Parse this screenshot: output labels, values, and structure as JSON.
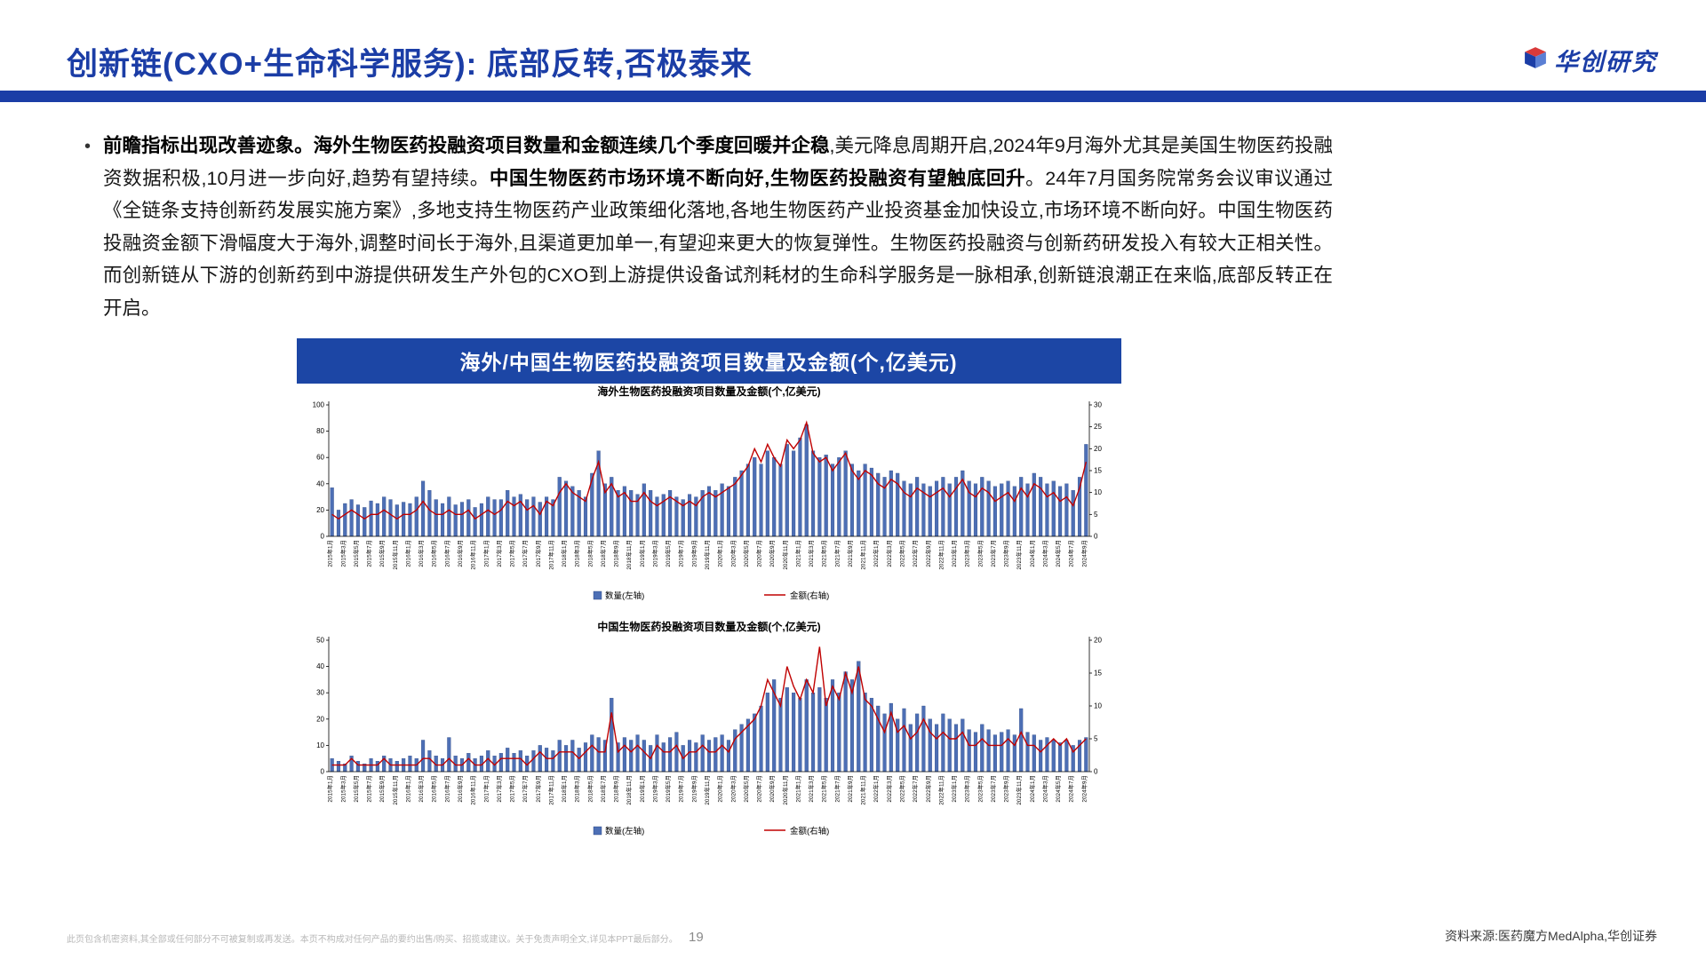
{
  "colors": {
    "primary_blue": "#1b3da6",
    "panel_header_blue": "#1c46a5",
    "bar_blue": "#4d6fb5",
    "line_red": "#c00000"
  },
  "header": {
    "title": "创新链(CXO+生命科学服务): 底部反转,否极泰来",
    "logo_text": "华创研究"
  },
  "bullet": {
    "marker": "•",
    "segments": [
      {
        "text": "前瞻指标出现改善迹象。海外生物医药投融资项目数量和金额连续几个季度回暖并企稳",
        "bold": true
      },
      {
        "text": ",美元降息周期开启,2024年9月海外尤其是美国生物医药投融资数据积极,10月进一步向好,趋势有望持续。",
        "bold": false
      },
      {
        "text": "中国生物医药市场环境不断向好,生物医药投融资有望触底回升",
        "bold": true
      },
      {
        "text": "。24年7月国务院常务会议审议通过《全链条支持创新药发展实施方案》,多地支持生物医药产业政策细化落地,各地生物医药产业投资基金加快设立,市场环境不断向好。中国生物医药投融资金额下滑幅度大于海外,调整时间长于海外,且渠道更加单一,有望迎来更大的恢复弹性。生物医药投融资与创新药研发投入有较大正相关性。而创新链从下游的创新药到中游提供研发生产外包的CXO到上游提供设备试剂耗材的生命科学服务是一脉相承,创新链浪潮正在来临,底部反转正在开启。",
        "bold": false
      }
    ]
  },
  "panel": {
    "title": "海外/中国生物医药投融资项目数量及金额(个,亿美元)"
  },
  "chart_data": [
    {
      "type": "bar+line",
      "title": "海外生物医药投融资项目数量及金额(个,亿美元)",
      "grid": false,
      "legend_position": "bottom",
      "left_axis": {
        "min": 0,
        "max": 100,
        "step": 20
      },
      "right_axis": {
        "min": 0,
        "max": 30,
        "step": 5
      },
      "x_tick_labels": [
        "2015年1月",
        "2015年3月",
        "2015年5月",
        "2015年7月",
        "2015年9月",
        "2015年11月",
        "2016年1月",
        "2016年3月",
        "2016年5月",
        "2016年7月",
        "2016年9月",
        "2016年11月",
        "2017年1月",
        "2017年3月",
        "2017年5月",
        "2017年7月",
        "2017年9月",
        "2017年11月",
        "2018年1月",
        "2018年3月",
        "2018年5月",
        "2018年7月",
        "2018年9月",
        "2018年11月",
        "2019年1月",
        "2019年3月",
        "2019年5月",
        "2019年7月",
        "2019年9月",
        "2019年11月",
        "2020年1月",
        "2020年3月",
        "2020年5月",
        "2020年7月",
        "2020年9月",
        "2020年11月",
        "2021年1月",
        "2021年3月",
        "2021年5月",
        "2021年7月",
        "2021年9月",
        "2021年11月",
        "2022年1月",
        "2022年3月",
        "2022年5月",
        "2022年7月",
        "2022年9月",
        "2022年11月",
        "2023年1月",
        "2023年3月",
        "2023年5月",
        "2023年7月",
        "2023年9月",
        "2023年11月",
        "2024年1月",
        "2024年3月",
        "2024年5月",
        "2024年7月",
        "2024年9月"
      ],
      "series": [
        {
          "name": "数量(左轴)",
          "kind": "bar",
          "axis": "left",
          "color": "#4d6fb5",
          "values": [
            37,
            20,
            25,
            28,
            24,
            22,
            27,
            25,
            30,
            28,
            24,
            26,
            25,
            30,
            42,
            35,
            28,
            25,
            30,
            24,
            26,
            28,
            22,
            25,
            30,
            28,
            28,
            35,
            30,
            32,
            28,
            30,
            26,
            30,
            28,
            45,
            42,
            38,
            35,
            30,
            48,
            65,
            40,
            45,
            35,
            38,
            35,
            32,
            40,
            35,
            30,
            32,
            35,
            30,
            28,
            32,
            30,
            35,
            38,
            35,
            40,
            38,
            45,
            50,
            55,
            60,
            55,
            65,
            60,
            55,
            70,
            65,
            75,
            85,
            65,
            60,
            62,
            55,
            60,
            65,
            55,
            50,
            55,
            52,
            48,
            45,
            50,
            48,
            42,
            40,
            45,
            40,
            38,
            42,
            45,
            40,
            45,
            50,
            42,
            40,
            45,
            42,
            38,
            40,
            42,
            38,
            45,
            40,
            48,
            45,
            40,
            42,
            38,
            40,
            35,
            45,
            70
          ]
        },
        {
          "name": "金额(右轴)",
          "kind": "line",
          "axis": "right",
          "color": "#c00000",
          "values": [
            5,
            4,
            5,
            6,
            5,
            4,
            5,
            5,
            6,
            5,
            4,
            5,
            5,
            6,
            8,
            6,
            5,
            5,
            6,
            5,
            5,
            6,
            4,
            5,
            6,
            5,
            6,
            8,
            7,
            8,
            6,
            7,
            5,
            8,
            7,
            10,
            12,
            10,
            9,
            8,
            13,
            17,
            10,
            12,
            9,
            10,
            8,
            8,
            10,
            8,
            7,
            8,
            9,
            8,
            7,
            8,
            7,
            9,
            10,
            9,
            10,
            11,
            12,
            14,
            16,
            20,
            17,
            21,
            18,
            16,
            22,
            20,
            22,
            26,
            19,
            17,
            18,
            15,
            17,
            19,
            15,
            13,
            15,
            14,
            12,
            11,
            13,
            12,
            10,
            9,
            11,
            10,
            9,
            10,
            11,
            9,
            11,
            13,
            10,
            9,
            11,
            10,
            8,
            9,
            10,
            8,
            11,
            9,
            12,
            11,
            9,
            10,
            8,
            9,
            7,
            11,
            17
          ]
        }
      ]
    },
    {
      "type": "bar+line",
      "title": "中国生物医药投融资项目数量及金额(个,亿美元)",
      "grid": false,
      "legend_position": "bottom",
      "left_axis": {
        "min": 0,
        "max": 50,
        "step": 10
      },
      "right_axis": {
        "min": 0,
        "max": 20,
        "step": 5
      },
      "x_tick_labels": [
        "2015年1月",
        "2015年3月",
        "2015年5月",
        "2015年7月",
        "2015年9月",
        "2015年11月",
        "2016年1月",
        "2016年3月",
        "2016年5月",
        "2016年7月",
        "2016年9月",
        "2016年11月",
        "2017年1月",
        "2017年3月",
        "2017年5月",
        "2017年7月",
        "2017年9月",
        "2017年11月",
        "2018年1月",
        "2018年3月",
        "2018年5月",
        "2018年7月",
        "2018年9月",
        "2018年11月",
        "2019年1月",
        "2019年3月",
        "2019年5月",
        "2019年7月",
        "2019年9月",
        "2019年11月",
        "2020年1月",
        "2020年3月",
        "2020年5月",
        "2020年7月",
        "2020年9月",
        "2020年11月",
        "2021年1月",
        "2021年3月",
        "2021年5月",
        "2021年7月",
        "2021年9月",
        "2021年11月",
        "2022年1月",
        "2022年3月",
        "2022年5月",
        "2022年7月",
        "2022年9月",
        "2022年11月",
        "2023年1月",
        "2023年3月",
        "2023年5月",
        "2023年7月",
        "2023年9月",
        "2023年11月",
        "2024年1月",
        "2024年3月",
        "2024年5月",
        "2024年7月",
        "2024年9月"
      ],
      "series": [
        {
          "name": "数量(左轴)",
          "kind": "bar",
          "axis": "left",
          "color": "#4d6fb5",
          "values": [
            5,
            4,
            3,
            6,
            4,
            3,
            5,
            4,
            6,
            5,
            4,
            5,
            6,
            5,
            12,
            8,
            6,
            5,
            13,
            6,
            5,
            7,
            5,
            6,
            8,
            6,
            7,
            9,
            7,
            8,
            6,
            8,
            10,
            9,
            8,
            12,
            10,
            12,
            9,
            11,
            14,
            13,
            12,
            28,
            11,
            13,
            12,
            14,
            12,
            10,
            14,
            11,
            13,
            15,
            10,
            12,
            11,
            14,
            12,
            13,
            14,
            12,
            16,
            18,
            20,
            22,
            25,
            30,
            35,
            28,
            32,
            30,
            28,
            35,
            30,
            32,
            28,
            35,
            30,
            38,
            35,
            42,
            30,
            28,
            25,
            22,
            26,
            20,
            24,
            18,
            22,
            25,
            20,
            18,
            22,
            20,
            18,
            20,
            16,
            15,
            18,
            16,
            14,
            15,
            16,
            14,
            24,
            15,
            14,
            12,
            13,
            12,
            11,
            12,
            10,
            12,
            13
          ]
        },
        {
          "name": "金额(右轴)",
          "kind": "line",
          "axis": "right",
          "color": "#c00000",
          "values": [
            1,
            1,
            1,
            2,
            1,
            1,
            1,
            1,
            2,
            1,
            1,
            1,
            1,
            1,
            2,
            2,
            1,
            1,
            2,
            1,
            1,
            2,
            1,
            1,
            2,
            1,
            2,
            2,
            2,
            2,
            1,
            2,
            3,
            2,
            2,
            3,
            3,
            3,
            2,
            3,
            4,
            3,
            3,
            9,
            3,
            4,
            3,
            4,
            3,
            2,
            4,
            3,
            3,
            4,
            2,
            3,
            3,
            4,
            3,
            3,
            4,
            3,
            5,
            6,
            7,
            8,
            10,
            14,
            12,
            10,
            16,
            13,
            11,
            14,
            12,
            19,
            10,
            13,
            11,
            15,
            12,
            16,
            11,
            10,
            8,
            6,
            9,
            6,
            7,
            5,
            6,
            8,
            6,
            5,
            6,
            5,
            5,
            6,
            4,
            4,
            5,
            4,
            4,
            4,
            5,
            4,
            6,
            4,
            4,
            3,
            4,
            5,
            4,
            5,
            3,
            4,
            5
          ]
        }
      ]
    }
  ],
  "footer": {
    "disclaimer": "此页包含机密资料,其全部或任何部分不可被复制或再发送。本页不构成对任何产品的要约出售/购买、招揽或建议。关于免责声明全文,详见本PPT最后部分。",
    "page_number": "19",
    "source": "资料来源:医药魔方MedAlpha,华创证券"
  }
}
